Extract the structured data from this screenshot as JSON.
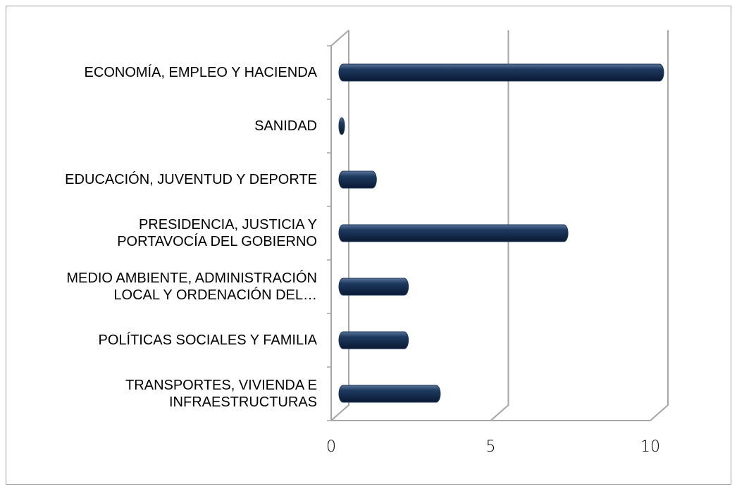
{
  "chart_data": {
    "type": "bar",
    "orientation": "horizontal",
    "three_d": true,
    "categories": [
      "ECONOMÍA, EMPLEO Y HACIENDA",
      "SANIDAD",
      "EDUCACIÓN, JUVENTUD Y DEPORTE",
      "PRESIDENCIA, JUSTICIA Y\nPORTAVOCÍA DEL GOBIERNO",
      "MEDIO AMBIENTE, ADMINISTRACIÓN\nLOCAL Y ORDENACIÓN DEL…",
      "POLÍTICAS SOCIALES Y FAMILIA",
      "TRANSPORTES, VIVIENDA E\nINFRAESTRUCTURAS"
    ],
    "values": [
      10,
      0,
      1,
      7,
      2,
      2,
      3
    ],
    "color": "#1b3558",
    "xlim": [
      0,
      10
    ],
    "xticks": [
      0,
      5,
      10
    ],
    "grid": true
  }
}
